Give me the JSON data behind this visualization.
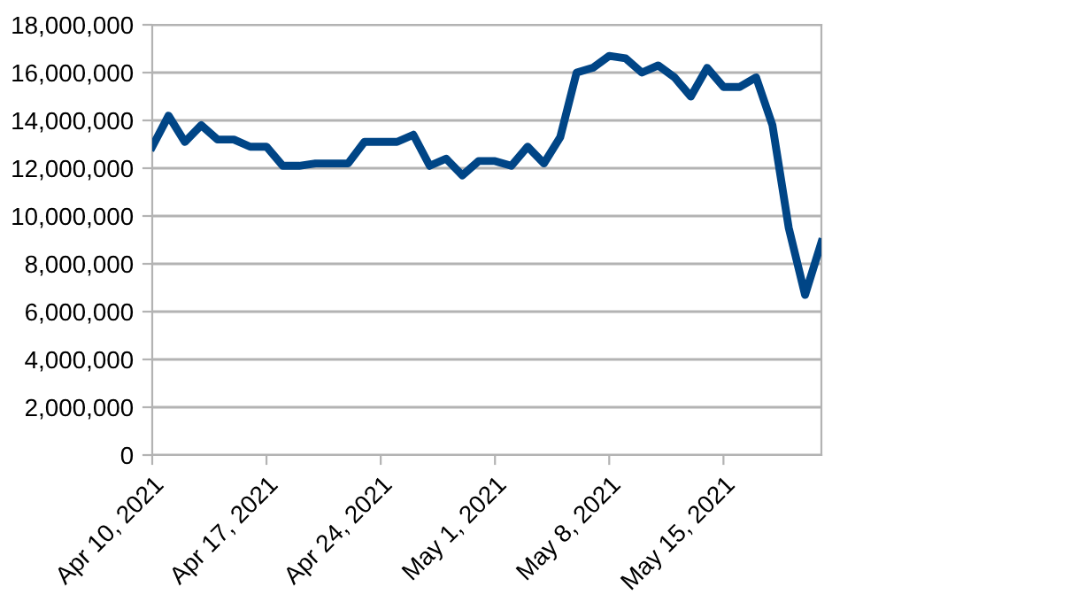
{
  "chart_data": {
    "type": "line",
    "x": [
      "2021-04-10",
      "2021-04-11",
      "2021-04-12",
      "2021-04-13",
      "2021-04-14",
      "2021-04-15",
      "2021-04-16",
      "2021-04-17",
      "2021-04-18",
      "2021-04-19",
      "2021-04-20",
      "2021-04-21",
      "2021-04-22",
      "2021-04-23",
      "2021-04-24",
      "2021-04-25",
      "2021-04-26",
      "2021-04-27",
      "2021-04-28",
      "2021-04-29",
      "2021-04-30",
      "2021-05-01",
      "2021-05-02",
      "2021-05-03",
      "2021-05-04",
      "2021-05-05",
      "2021-05-06",
      "2021-05-07",
      "2021-05-08",
      "2021-05-09",
      "2021-05-10",
      "2021-05-11",
      "2021-05-12",
      "2021-05-13",
      "2021-05-14",
      "2021-05-15",
      "2021-05-16",
      "2021-05-17",
      "2021-05-18",
      "2021-05-19",
      "2021-05-20",
      "2021-05-21"
    ],
    "series": [
      {
        "color": "#004586",
        "values": [
          12900000,
          14200000,
          13100000,
          13800000,
          13200000,
          13200000,
          12900000,
          12900000,
          12100000,
          12100000,
          12200000,
          12200000,
          12200000,
          13100000,
          13100000,
          13100000,
          13400000,
          12100000,
          12400000,
          11700000,
          12300000,
          12300000,
          12100000,
          12900000,
          12200000,
          13300000,
          16000000,
          16200000,
          16700000,
          16600000,
          16000000,
          16300000,
          15800000,
          15000000,
          16200000,
          15400000,
          15400000,
          15800000,
          13800000,
          9500000,
          6700000,
          8900000
        ]
      }
    ],
    "xlim": [
      "2021-04-10",
      "2021-05-21"
    ],
    "xticks": [
      {
        "value": "2021-04-10",
        "label": "Apr 10, 2021"
      },
      {
        "value": "2021-04-17",
        "label": "Apr 17, 2021"
      },
      {
        "value": "2021-04-24",
        "label": "Apr 24, 2021"
      },
      {
        "value": "2021-05-01",
        "label": "May 1, 2021"
      },
      {
        "value": "2021-05-08",
        "label": "May 8, 2021"
      },
      {
        "value": "2021-05-15",
        "label": "May 15, 2021"
      }
    ],
    "ylim": [
      0,
      18000000
    ],
    "yticks": [
      {
        "value": 0,
        "label": "0"
      },
      {
        "value": 2000000,
        "label": "2,000,000"
      },
      {
        "value": 4000000,
        "label": "4,000,000"
      },
      {
        "value": 6000000,
        "label": "6,000,000"
      },
      {
        "value": 8000000,
        "label": "8,000,000"
      },
      {
        "value": 10000000,
        "label": "10,000,000"
      },
      {
        "value": 12000000,
        "label": "12,000,000"
      },
      {
        "value": 14000000,
        "label": "14,000,000"
      },
      {
        "value": 16000000,
        "label": "16,000,000"
      },
      {
        "value": 18000000,
        "label": "18,000,000"
      }
    ],
    "grid": "y",
    "marker": "none",
    "line_style": "solid"
  }
}
